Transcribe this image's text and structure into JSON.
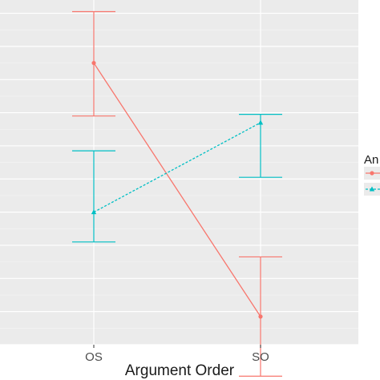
{
  "chart_data": {
    "type": "line",
    "title": "",
    "xlabel": "Argument Order",
    "ylabel": "",
    "categories": [
      "OS",
      "SO"
    ],
    "ylim": [
      0,
      10.4
    ],
    "grid": true,
    "legend": {
      "title": "An",
      "placement": "right"
    },
    "series": [
      {
        "name": "",
        "color": "#F8766D",
        "marker": "circle",
        "line_style": "solid",
        "values": [
          8.5,
          0.85
        ],
        "error_lower": [
          6.9,
          -0.95
        ],
        "error_upper": [
          10.05,
          2.65
        ]
      },
      {
        "name": "",
        "color": "#00BFC4",
        "marker": "triangle",
        "line_style": "dashed",
        "values": [
          4.0,
          6.7
        ],
        "error_lower": [
          3.1,
          5.05
        ],
        "error_upper": [
          5.85,
          6.95
        ]
      }
    ]
  }
}
